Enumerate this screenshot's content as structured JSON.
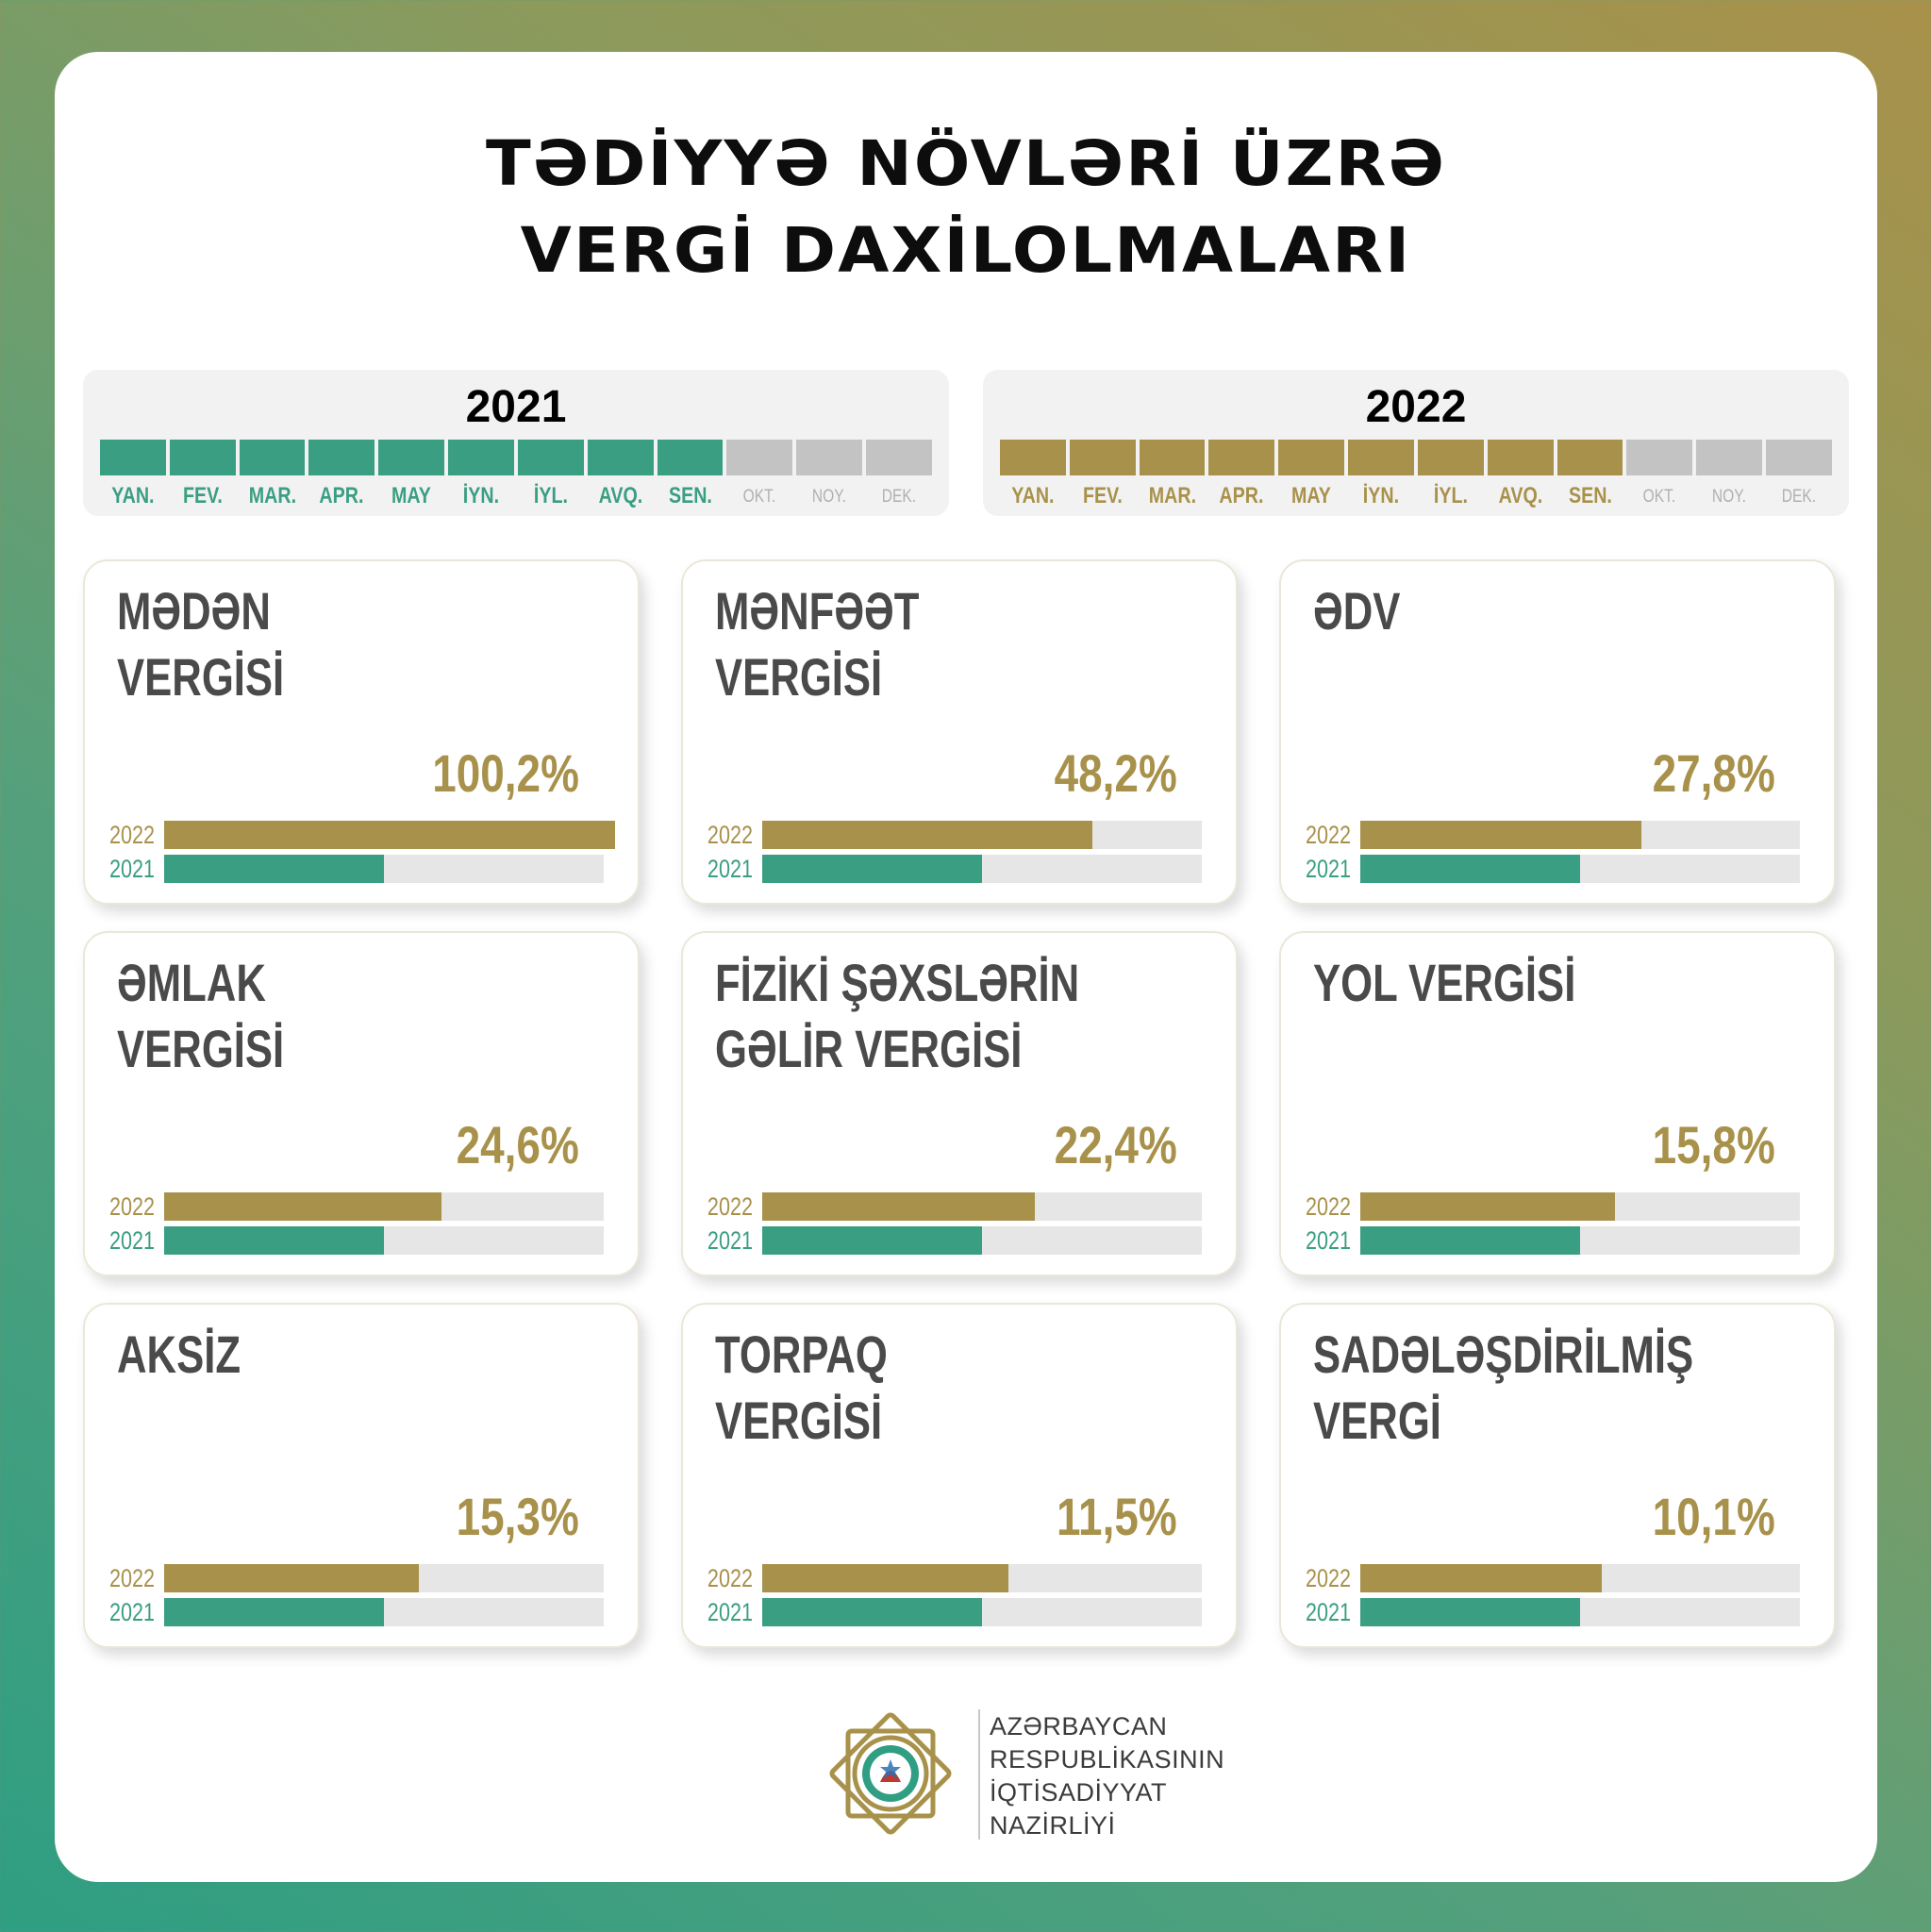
{
  "title": {
    "line1": "TƏDİYYƏ NÖVLƏRİ ÜZRƏ",
    "line2": "VERGİ DAXİLOLMALARI"
  },
  "colors": {
    "y2021": "#3a9e82",
    "y2022": "#a8914a",
    "inactive": "#c3c3c3",
    "track": "#e6e6e6"
  },
  "periods": [
    {
      "year": "2021",
      "months": [
        "YAN.",
        "FEV.",
        "MAR.",
        "APR.",
        "MAY",
        "İYN.",
        "İYL.",
        "AVQ.",
        "SEN.",
        "OKT.",
        "NOY.",
        "DEK."
      ],
      "active_months": 9
    },
    {
      "year": "2022",
      "months": [
        "YAN.",
        "FEV.",
        "MAR.",
        "APR.",
        "MAY",
        "İYN.",
        "İYL.",
        "AVQ.",
        "SEN.",
        "OKT.",
        "NOY.",
        "DEK."
      ],
      "active_months": 9
    }
  ],
  "footer": {
    "org_lines": [
      "AZƏRBAYCAN",
      "RESPUBLİKASININ",
      "İQTİSADİYYAT",
      "NAZİRLİYİ"
    ]
  },
  "chart_data": [
    {
      "type": "bar",
      "title": "MƏDƏN\nVERGİSİ",
      "annotation": "100,2%",
      "categories": [
        "2022",
        "2021"
      ],
      "values": [
        1.0,
        0.5
      ]
    },
    {
      "type": "bar",
      "title": "MƏNFƏƏT\nVERGİSİ",
      "annotation": "48,2%",
      "categories": [
        "2022",
        "2021"
      ],
      "values": [
        0.75,
        0.5
      ]
    },
    {
      "type": "bar",
      "title": "ƏDV",
      "annotation": "27,8%",
      "categories": [
        "2022",
        "2021"
      ],
      "values": [
        0.64,
        0.5
      ]
    },
    {
      "type": "bar",
      "title": "ƏMLAK\nVERGİSİ",
      "annotation": "24,6%",
      "categories": [
        "2022",
        "2021"
      ],
      "values": [
        0.63,
        0.5
      ]
    },
    {
      "type": "bar",
      "title": "FİZİKİ ŞƏXSLƏRİN\nGƏLİR VERGİSİ",
      "annotation": "22,4%",
      "categories": [
        "2022",
        "2021"
      ],
      "values": [
        0.62,
        0.5
      ]
    },
    {
      "type": "bar",
      "title": "YOL VERGİSİ",
      "annotation": "15,8%",
      "categories": [
        "2022",
        "2021"
      ],
      "values": [
        0.58,
        0.5
      ]
    },
    {
      "type": "bar",
      "title": "AKSİZ",
      "annotation": "15,3%",
      "categories": [
        "2022",
        "2021"
      ],
      "values": [
        0.58,
        0.5
      ]
    },
    {
      "type": "bar",
      "title": "TORPAQ\nVERGİSİ",
      "annotation": "11,5%",
      "categories": [
        "2022",
        "2021"
      ],
      "values": [
        0.56,
        0.5
      ]
    },
    {
      "type": "bar",
      "title": "SADƏLƏŞDİRİLMİŞ\nVERGİ",
      "annotation": "10,1%",
      "categories": [
        "2022",
        "2021"
      ],
      "values": [
        0.55,
        0.5
      ]
    }
  ]
}
